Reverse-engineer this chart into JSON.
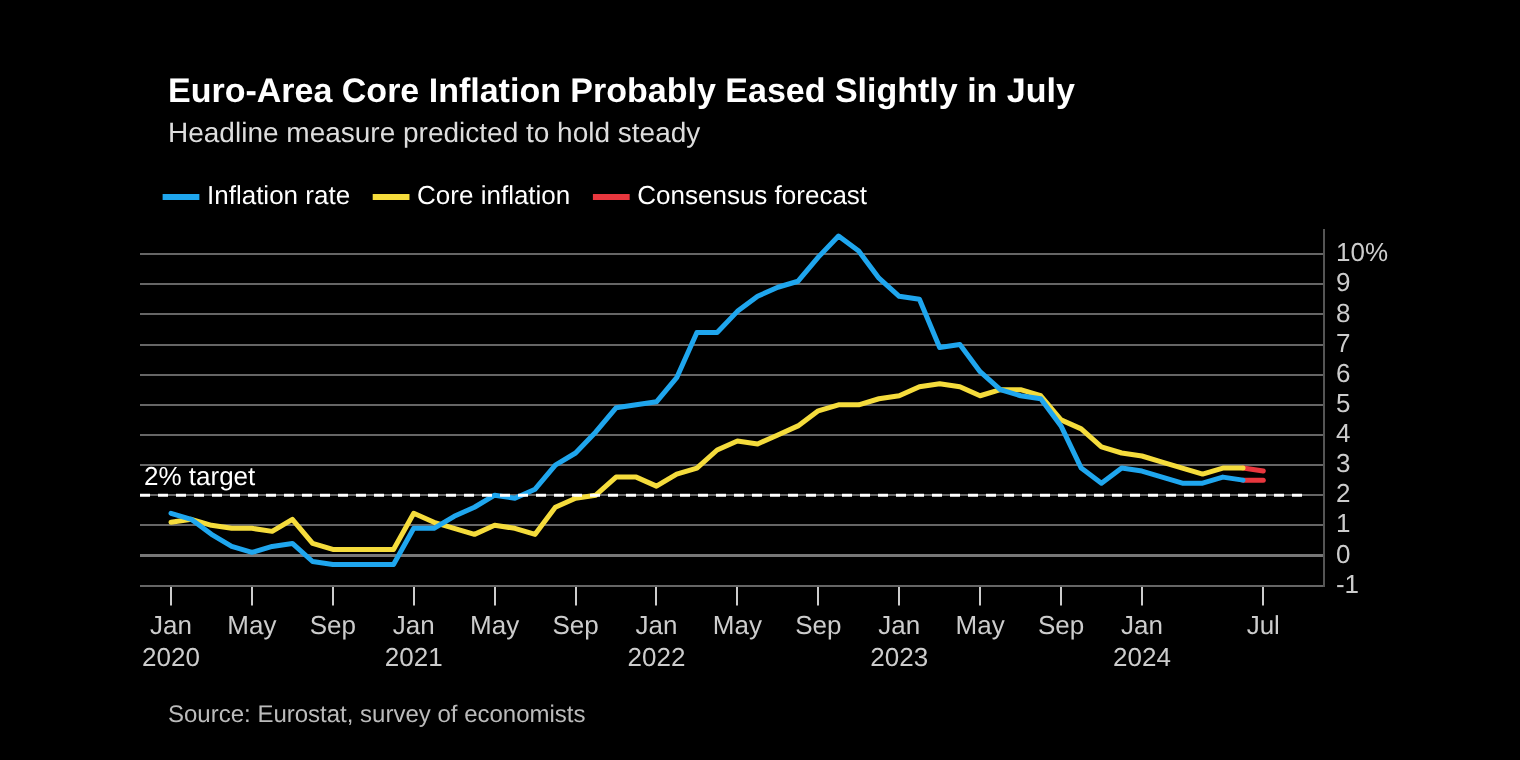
{
  "chart_data": {
    "type": "line",
    "title": "Euro-Area Core Inflation Probably Eased Slightly in July",
    "subtitle": "Headline measure predicted to hold steady",
    "x": [
      "2020-01",
      "2020-02",
      "2020-03",
      "2020-04",
      "2020-05",
      "2020-06",
      "2020-07",
      "2020-08",
      "2020-09",
      "2020-10",
      "2020-11",
      "2020-12",
      "2021-01",
      "2021-02",
      "2021-03",
      "2021-04",
      "2021-05",
      "2021-06",
      "2021-07",
      "2021-08",
      "2021-09",
      "2021-10",
      "2021-11",
      "2021-12",
      "2022-01",
      "2022-02",
      "2022-03",
      "2022-04",
      "2022-05",
      "2022-06",
      "2022-07",
      "2022-08",
      "2022-09",
      "2022-10",
      "2022-11",
      "2022-12",
      "2023-01",
      "2023-02",
      "2023-03",
      "2023-04",
      "2023-05",
      "2023-06",
      "2023-07",
      "2023-08",
      "2023-09",
      "2023-10",
      "2023-11",
      "2023-12",
      "2024-01",
      "2024-02",
      "2024-03",
      "2024-04",
      "2024-05",
      "2024-06"
    ],
    "series": [
      {
        "name": "Inflation rate",
        "color": "#1fa6ee",
        "values": [
          1.4,
          1.2,
          0.7,
          0.3,
          0.1,
          0.3,
          0.4,
          -0.2,
          -0.3,
          -0.3,
          -0.3,
          -0.3,
          0.9,
          0.9,
          1.3,
          1.6,
          2.0,
          1.9,
          2.2,
          3.0,
          3.4,
          4.1,
          4.9,
          5.0,
          5.1,
          5.9,
          7.4,
          7.4,
          8.1,
          8.6,
          8.9,
          9.1,
          9.9,
          10.6,
          10.1,
          9.2,
          8.6,
          8.5,
          6.9,
          7.0,
          6.1,
          5.5,
          5.3,
          5.2,
          4.3,
          2.9,
          2.4,
          2.9,
          2.8,
          2.6,
          2.4,
          2.4,
          2.6,
          2.5
        ]
      },
      {
        "name": "Core inflation",
        "color": "#f5dc3c",
        "values": [
          1.1,
          1.2,
          1.0,
          0.9,
          0.9,
          0.8,
          1.2,
          0.4,
          0.2,
          0.2,
          0.2,
          0.2,
          1.4,
          1.1,
          0.9,
          0.7,
          1.0,
          0.9,
          0.7,
          1.6,
          1.9,
          2.0,
          2.6,
          2.6,
          2.3,
          2.7,
          2.9,
          3.5,
          3.8,
          3.7,
          4.0,
          4.3,
          4.8,
          5.0,
          5.0,
          5.2,
          5.3,
          5.6,
          5.7,
          5.6,
          5.3,
          5.5,
          5.5,
          5.3,
          4.5,
          4.2,
          3.6,
          3.4,
          3.3,
          3.1,
          2.9,
          2.7,
          2.9,
          2.9
        ]
      },
      {
        "name": "Consensus forecast",
        "color": "#e8373e",
        "x": [
          "2024-06",
          "2024-07"
        ],
        "values": [
          2.5,
          2.5
        ]
      },
      {
        "color": "#e8373e",
        "x": [
          "2024-06",
          "2024-07"
        ],
        "values": [
          2.9,
          2.8
        ]
      }
    ],
    "xlim": [
      "2019-11-15",
      "2024-10"
    ],
    "xticks": [
      {
        "value": "2020-01",
        "label": "Jan 2020"
      },
      {
        "value": "2020-05",
        "label": "May"
      },
      {
        "value": "2020-09",
        "label": "Sep"
      },
      {
        "value": "2021-01",
        "label": "Jan 2021"
      },
      {
        "value": "2021-05",
        "label": "May"
      },
      {
        "value": "2021-09",
        "label": "Sep"
      },
      {
        "value": "2022-01",
        "label": "Jan 2022"
      },
      {
        "value": "2022-05",
        "label": "May"
      },
      {
        "value": "2022-09",
        "label": "Sep"
      },
      {
        "value": "2023-01",
        "label": "Jan 2023"
      },
      {
        "value": "2023-05",
        "label": "May"
      },
      {
        "value": "2023-09",
        "label": "Sep"
      },
      {
        "value": "2024-01",
        "label": "Jan 2024"
      },
      {
        "value": "2024-07",
        "label": "Jul"
      }
    ],
    "ylim": [
      -1,
      10.8
    ],
    "yticks": [
      -1,
      0,
      1,
      2,
      3,
      4,
      5,
      6,
      7,
      8,
      9,
      {
        "value": 10,
        "label": "10%"
      }
    ],
    "ref_lines": [
      {
        "axis": "y",
        "value": 2,
        "label": "2% target",
        "color": "#ffffff",
        "line_style": "dashed"
      }
    ],
    "annotations": [
      "Source: Eurostat, survey of economists"
    ],
    "grid": "y",
    "legend": "top left",
    "marker": "none",
    "line_style": "solid"
  }
}
